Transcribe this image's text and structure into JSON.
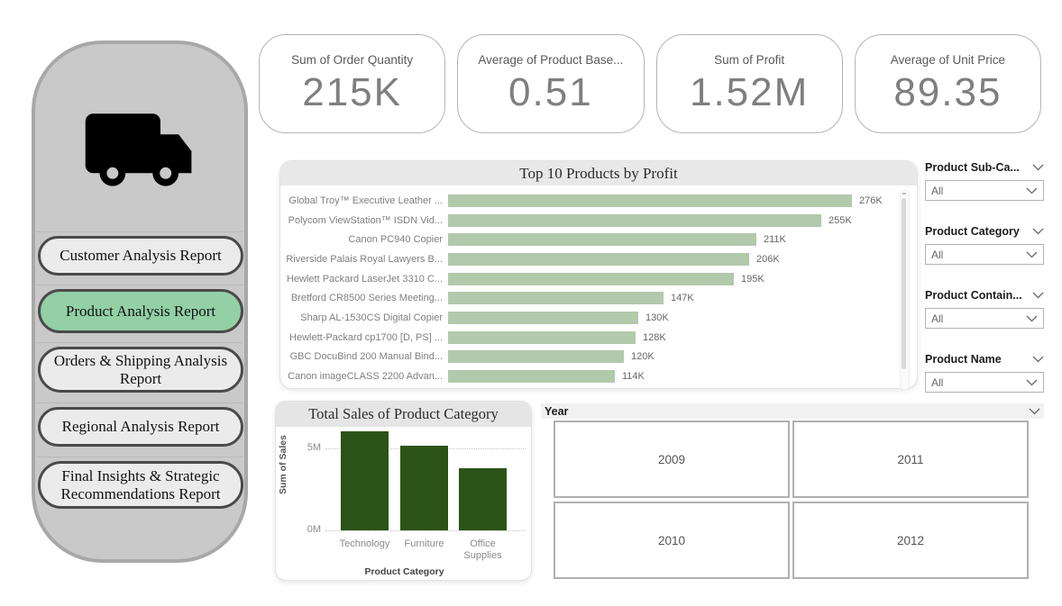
{
  "colors": {
    "accent_green": "#93d0a6",
    "light_green_bar": "#b2c9ac",
    "dark_green_bar": "#2c5317",
    "sidebar_gray": "#c9c9c9"
  },
  "kpis": [
    {
      "label": "Sum of Order Quantity",
      "value": "215K"
    },
    {
      "label": "Average of Product Base...",
      "value": "0.51"
    },
    {
      "label": "Sum of Profit",
      "value": "1.52M"
    },
    {
      "label": "Average of Unit Price",
      "value": "89.35"
    }
  ],
  "sidebar": {
    "items": [
      {
        "label": "Customer Analysis Report",
        "active": false
      },
      {
        "label": "Product Analysis Report",
        "active": true
      },
      {
        "label": "Orders & Shipping Analysis Report",
        "active": false
      },
      {
        "label": "Regional Analysis Report",
        "active": false
      },
      {
        "label": "Final Insights & Strategic Recommendations Report",
        "active": false
      }
    ]
  },
  "filters": [
    {
      "label": "Product Sub-Ca...",
      "value": "All"
    },
    {
      "label": "Product Category",
      "value": "All"
    },
    {
      "label": "Product Contain...",
      "value": "All"
    },
    {
      "label": "Product Name",
      "value": "All"
    }
  ],
  "year_slicer": {
    "label": "Year",
    "options": [
      "2009",
      "2011",
      "2010",
      "2012"
    ]
  },
  "chart_data": [
    {
      "type": "bar",
      "orientation": "horizontal",
      "title": "Top 10 Products by Profit",
      "categories": [
        "Global Troy™ Executive Leather ...",
        "Polycom ViewStation™ ISDN Vid...",
        "Canon PC940 Copier",
        "Riverside Palais Royal Lawyers B...",
        "Hewlett Packard LaserJet 3310 C...",
        "Bretford CR8500 Series Meeting...",
        "Sharp AL-1530CS Digital Copier",
        "Hewlett-Packard cp1700 [D, PS] ...",
        "GBC DocuBind 200 Manual Bind...",
        "Canon imageCLASS 2200 Advan..."
      ],
      "values": [
        276,
        255,
        211,
        206,
        195,
        147,
        130,
        128,
        120,
        114
      ],
      "value_labels": [
        "276K",
        "255K",
        "211K",
        "206K",
        "195K",
        "147K",
        "130K",
        "128K",
        "120K",
        "114K"
      ],
      "unit": "K",
      "xlim": [
        0,
        300
      ],
      "bar_color": "#b2c9ac",
      "grid": false,
      "scrollbar": true
    },
    {
      "type": "bar",
      "orientation": "vertical",
      "title": "Total Sales of Product Category",
      "categories": [
        "Technology",
        "Furniture",
        "Office Supplies"
      ],
      "values": [
        6.05,
        5.15,
        3.8
      ],
      "unit": "M",
      "xlabel": "Product Category",
      "ylabel": "Sum of Sales",
      "yticks": [
        "5M",
        "0M"
      ],
      "ytick_values": [
        5,
        0
      ],
      "ylim": [
        0,
        6.3
      ],
      "bar_color": "#2c5317",
      "grid": "dotted"
    }
  ]
}
